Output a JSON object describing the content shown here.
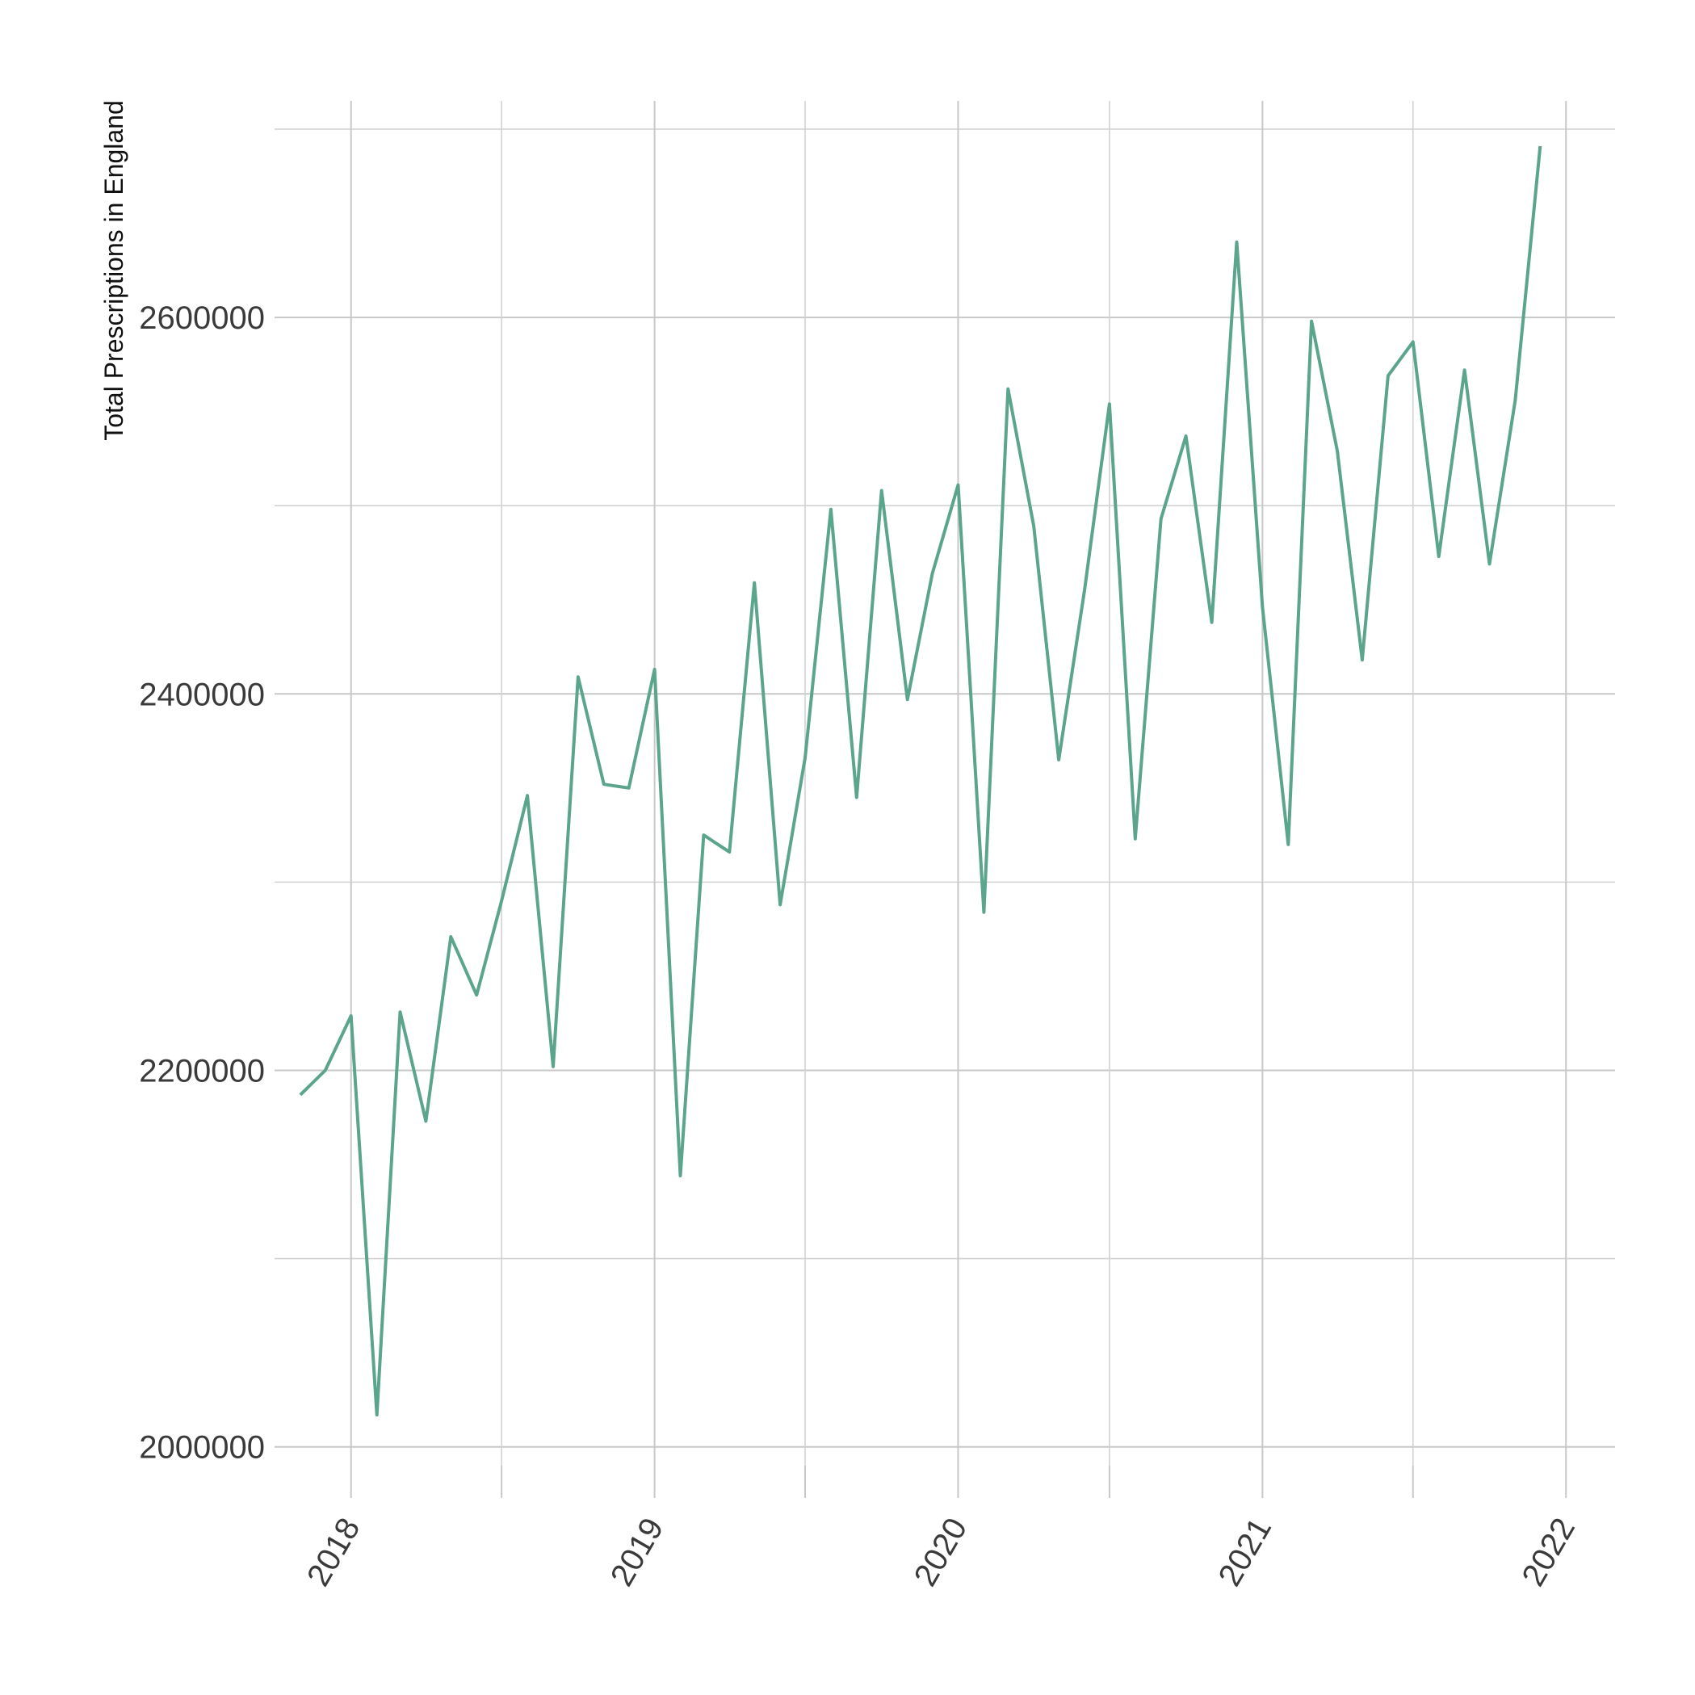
{
  "chart_data": {
    "type": "line",
    "title": "",
    "xlabel": "",
    "ylabel": "Total Prescriptions in England",
    "xlim": [
      "2017-10-01",
      "2022-03-01"
    ],
    "ylim": [
      1990000,
      2715000
    ],
    "x_ticks": [
      "2018",
      "2019",
      "2020",
      "2021",
      "2022"
    ],
    "y_ticks": [
      "2000000",
      "2200000",
      "2400000",
      "2600000"
    ],
    "grid": true,
    "legend": "none",
    "line_color": "#5aa58c",
    "series": [
      {
        "x": [
          "2017-11-01",
          "2017-12-01",
          "2018-01-01",
          "2018-02-01",
          "2018-03-01",
          "2018-04-01",
          "2018-05-01",
          "2018-06-01",
          "2018-07-01",
          "2018-08-01",
          "2018-09-01",
          "2018-10-01",
          "2018-11-01",
          "2018-12-01",
          "2019-01-01",
          "2019-02-01",
          "2019-03-01",
          "2019-04-01",
          "2019-05-01",
          "2019-06-01",
          "2019-07-01",
          "2019-08-01",
          "2019-09-01",
          "2019-10-01",
          "2019-11-01",
          "2019-12-01",
          "2020-01-01",
          "2020-02-01",
          "2020-03-01",
          "2020-04-01",
          "2020-05-01",
          "2020-06-01",
          "2020-07-01",
          "2020-08-01",
          "2020-09-01",
          "2020-10-01",
          "2020-11-01",
          "2020-12-01",
          "2021-01-01",
          "2021-02-01",
          "2021-03-01",
          "2021-04-01",
          "2021-05-01",
          "2021-06-01",
          "2021-07-01",
          "2021-08-01",
          "2021-09-01",
          "2021-10-01",
          "2021-11-01",
          "2021-12-01"
        ],
        "values": [
          2187000,
          2200000,
          2229000,
          2017000,
          2231000,
          2173000,
          2271000,
          2240000,
          2290000,
          2346000,
          2202000,
          2409000,
          2352000,
          2350000,
          2413000,
          2144000,
          2325000,
          2316000,
          2459000,
          2288000,
          2366000,
          2498000,
          2345000,
          2508000,
          2397000,
          2464000,
          2511000,
          2284000,
          2562000,
          2489000,
          2365000,
          2455000,
          2554000,
          2323000,
          2493000,
          2537000,
          2438000,
          2640000,
          2446000,
          2320000,
          2598000,
          2529000,
          2418000,
          2569000,
          2587000,
          2473000,
          2572000,
          2469000,
          2556000,
          2691000
        ]
      }
    ]
  }
}
